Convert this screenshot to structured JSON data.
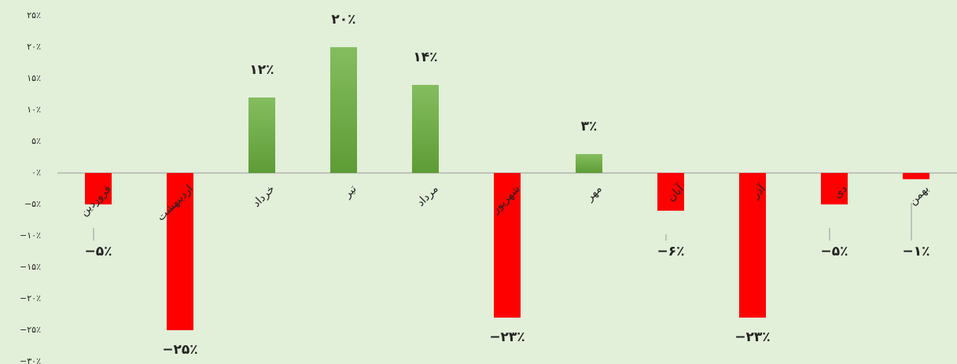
{
  "chart_data": {
    "type": "bar",
    "categories": [
      "فروردین",
      "اردیبهشت",
      "خرداد",
      "تیر",
      "مرداد",
      "شهریور",
      "مهر",
      "آبان",
      "آذر",
      "دی",
      "بهمن"
    ],
    "values": [
      -5,
      -25,
      12,
      20,
      14,
      -23,
      3,
      -6,
      -23,
      -5,
      -1
    ],
    "value_labels": [
      "−۵٪",
      "−۲۵٪",
      "۱۲٪",
      "۲۰٪",
      "۱۴٪",
      "−۲۳٪",
      "۳٪",
      "−۶٪",
      "−۲۳٪",
      "−۵٪",
      "−۱٪"
    ],
    "positive_color": "#70ad47",
    "negative_color": "#ff0000",
    "ylim": [
      -30,
      25
    ],
    "yticks": [
      {
        "value": 25,
        "label": "۲۵٪"
      },
      {
        "value": 20,
        "label": "۲۰٪"
      },
      {
        "value": 15,
        "label": "۱۵٪"
      },
      {
        "value": 10,
        "label": "۱۰٪"
      },
      {
        "value": 5,
        "label": "۵٪"
      },
      {
        "value": 0,
        "label": "۰٪"
      },
      {
        "value": -5,
        "label": "−۵٪"
      },
      {
        "value": -10,
        "label": "−۱۰٪"
      },
      {
        "value": -15,
        "label": "−۱۵٪"
      },
      {
        "value": -20,
        "label": "−۲۰٪"
      },
      {
        "value": -25,
        "label": "−۲۵٪"
      },
      {
        "value": -30,
        "label": "−۳۰٪"
      }
    ]
  }
}
